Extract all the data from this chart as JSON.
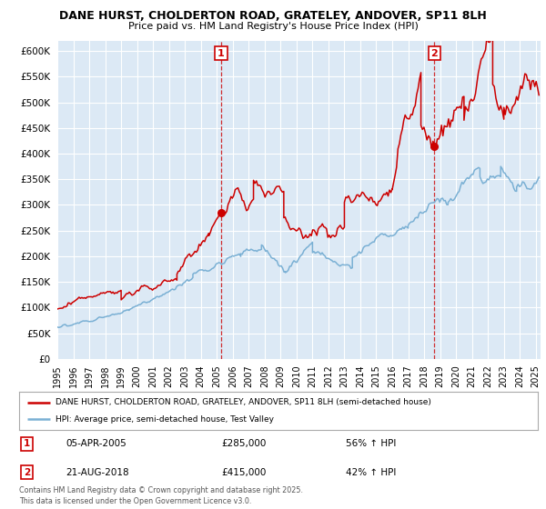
{
  "title": "DANE HURST, CHOLDERTON ROAD, GRATELEY, ANDOVER, SP11 8LH",
  "subtitle": "Price paid vs. HM Land Registry's House Price Index (HPI)",
  "ylim": [
    0,
    620000
  ],
  "yticks": [
    0,
    50000,
    100000,
    150000,
    200000,
    250000,
    300000,
    350000,
    400000,
    450000,
    500000,
    550000,
    600000
  ],
  "xlim_start": 1995.0,
  "xlim_end": 2025.3,
  "red_color": "#cc0000",
  "blue_color": "#7ab0d4",
  "marker1_date": 2005.27,
  "marker1_price": 285000,
  "marker2_date": 2018.65,
  "marker2_price": 415000,
  "legend_label_red": "DANE HURST, CHOLDERTON ROAD, GRATELEY, ANDOVER, SP11 8LH (semi-detached house)",
  "legend_label_blue": "HPI: Average price, semi-detached house, Test Valley",
  "annotation1_label": "1",
  "annotation1_date_str": "05-APR-2005",
  "annotation1_price_str": "£285,000",
  "annotation1_hpi_str": "56% ↑ HPI",
  "annotation2_label": "2",
  "annotation2_date_str": "21-AUG-2018",
  "annotation2_price_str": "£415,000",
  "annotation2_hpi_str": "42% ↑ HPI",
  "footer": "Contains HM Land Registry data © Crown copyright and database right 2025.\nThis data is licensed under the Open Government Licence v3.0.",
  "bg_color": "#ffffff",
  "chart_bg": "#dce9f5",
  "grid_color": "#ffffff"
}
